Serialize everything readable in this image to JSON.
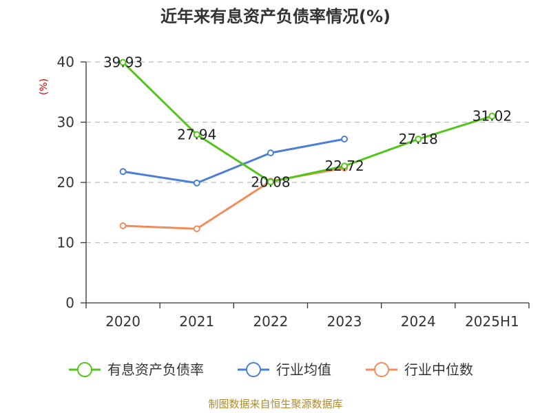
{
  "chart_data": {
    "type": "line",
    "title": "近年来有息资产负债率情况(%)",
    "unit_label": "(%)",
    "categories": [
      "2020",
      "2021",
      "2022",
      "2023",
      "2024",
      "2025H1"
    ],
    "ylim": [
      0,
      40
    ],
    "yticks": [
      0,
      10,
      20,
      30,
      40
    ],
    "grid": true,
    "legend_position": "bottom",
    "series": [
      {
        "name": "有息资产负债率",
        "color": "#52c41a",
        "values": [
          39.93,
          27.94,
          20.08,
          22.72,
          27.18,
          31.02
        ],
        "labels": [
          "39.93",
          "27.94",
          "20.08",
          "22.72",
          "27.18",
          "31.02"
        ]
      },
      {
        "name": "行业均值",
        "color": "#4a7fd4",
        "values": [
          21.8,
          19.9,
          24.9,
          27.2,
          null,
          null
        ]
      },
      {
        "name": "行业中位数",
        "color": "#f28c5a",
        "values": [
          12.8,
          12.3,
          20.2,
          22.4,
          null,
          null
        ]
      }
    ],
    "source": "制图数据来自恒生聚源数据库"
  }
}
